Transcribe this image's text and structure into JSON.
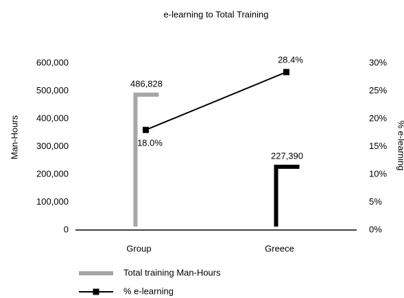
{
  "chart_data": {
    "type": "combo",
    "title": "e-learning to Total Training",
    "ylabel": "Man-Hours",
    "y2label": "% e-learning",
    "categories": [
      "Group",
      "Greece"
    ],
    "series": [
      {
        "name": "Total training Man-Hours",
        "type": "bar",
        "color": "#a6a6a6",
        "point_colors": [
          "#a6a6a6",
          "#000000"
        ],
        "values": [
          486828,
          227390
        ],
        "value_labels": [
          "486,828",
          "227,390"
        ]
      },
      {
        "name": "% e-learning",
        "type": "line",
        "axis": "y2",
        "color": "#000000",
        "values": [
          18.0,
          28.4
        ],
        "value_labels": [
          "18.0%",
          "28.4%"
        ]
      }
    ],
    "ylim": [
      0,
      600000
    ],
    "yticks": [
      0,
      {
        "value": 100000,
        "label": "100,000"
      },
      {
        "value": 200000,
        "label": "200,000"
      },
      {
        "value": 300000,
        "label": "300,000"
      },
      {
        "value": 400000,
        "label": "400,000"
      },
      {
        "value": 500000,
        "label": "500,000"
      },
      {
        "value": 600000,
        "label": "600,000"
      }
    ],
    "y2lim": [
      0,
      30
    ],
    "y2ticks": [
      {
        "value": 0,
        "label": "0%"
      },
      {
        "value": 5,
        "label": "5%"
      },
      {
        "value": 10,
        "label": "10%"
      },
      {
        "value": 15,
        "label": "15%"
      },
      {
        "value": 20,
        "label": "20%"
      },
      {
        "value": 25,
        "label": "25%"
      },
      {
        "value": 30,
        "label": "30%"
      }
    ],
    "legend": "bottom-left"
  }
}
